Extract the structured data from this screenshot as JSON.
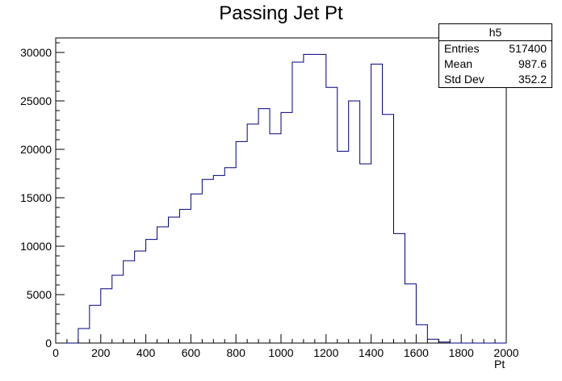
{
  "chart_data": {
    "type": "bar",
    "title": "Passing Jet Pt",
    "xlabel": "Pt",
    "ylabel": "",
    "xlim": [
      0,
      2000
    ],
    "ylim": [
      0,
      31500
    ],
    "bin_width": 50,
    "bin_edges_start": [
      0,
      50,
      100,
      150,
      200,
      250,
      300,
      350,
      400,
      450,
      500,
      550,
      600,
      650,
      700,
      750,
      800,
      850,
      900,
      950,
      1000,
      1050,
      1100,
      1150,
      1200,
      1250,
      1300,
      1350,
      1400,
      1450,
      1500,
      1550,
      1600,
      1650,
      1700,
      1750,
      1800,
      1850,
      1900,
      1950
    ],
    "values": [
      0,
      0,
      1500,
      3900,
      5600,
      7000,
      8500,
      9500,
      10700,
      12000,
      13000,
      13800,
      15400,
      16900,
      17300,
      18100,
      20800,
      22600,
      24200,
      21600,
      23800,
      29000,
      29800,
      29800,
      26400,
      19800,
      25000,
      18500,
      28800,
      23600,
      11300,
      6100,
      1900,
      400,
      100,
      0,
      0,
      0,
      0,
      0
    ],
    "x_ticks": [
      "0",
      "200",
      "400",
      "600",
      "800",
      "1000",
      "1200",
      "1400",
      "1600",
      "1800",
      "2000"
    ],
    "y_ticks": [
      "0",
      "5000",
      "10000",
      "15000",
      "20000",
      "25000",
      "30000"
    ],
    "grid": false,
    "legend": "none",
    "line_color": "#000080",
    "stats_box": {
      "name": "h5",
      "rows": [
        {
          "label": "Entries",
          "value": "517400"
        },
        {
          "label": "Mean",
          "value": "987.6"
        },
        {
          "label": "Std Dev",
          "value": "352.2"
        }
      ]
    }
  }
}
